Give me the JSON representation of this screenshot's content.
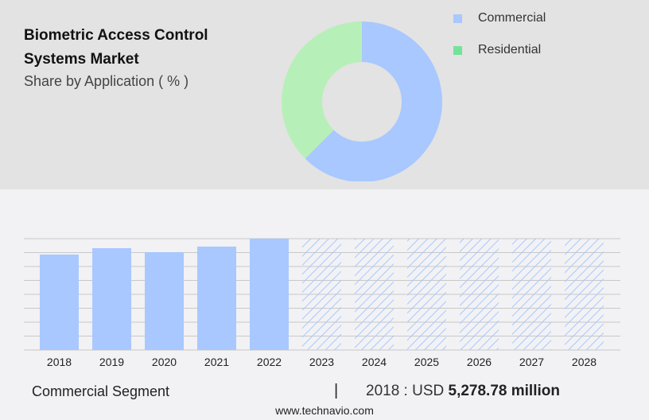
{
  "title": "Biometric Access Control Systems Market",
  "subtitle": "Share by Application ( % )",
  "colors": {
    "commercial": "#a8c8ff",
    "residential": "#b7efb9",
    "residential_legend": "#74e39a",
    "hatch": "#a8c8ff"
  },
  "chart_data": [
    {
      "type": "pie",
      "style": "donut",
      "slices": [
        {
          "name": "Commercial",
          "value": 62.5
        },
        {
          "name": "Residential",
          "value": 37.5
        }
      ],
      "legend": "right"
    },
    {
      "type": "bar",
      "categories": [
        "2018",
        "2019",
        "2020",
        "2021",
        "2022",
        "2023",
        "2024",
        "2025",
        "2026",
        "2027",
        "2028"
      ],
      "values": [
        5278.78,
        5631,
        5411,
        5719,
        6159,
        null,
        null,
        null,
        null,
        null,
        null
      ],
      "forecast": [
        "2023",
        "2024",
        "2025",
        "2026",
        "2027",
        "2028"
      ],
      "grid": true,
      "unit": "USD million"
    }
  ],
  "footer": {
    "segment": "Commercial Segment",
    "separator": "|",
    "year_label": "2018 : USD",
    "value": "5,278.78 million",
    "site": "www.technavio.com"
  }
}
